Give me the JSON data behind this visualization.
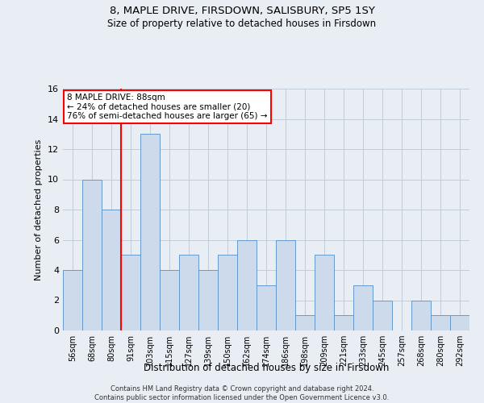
{
  "title1": "8, MAPLE DRIVE, FIRSDOWN, SALISBURY, SP5 1SY",
  "title2": "Size of property relative to detached houses in Firsdown",
  "xlabel": "Distribution of detached houses by size in Firsdown",
  "ylabel": "Number of detached properties",
  "footer1": "Contains HM Land Registry data © Crown copyright and database right 2024.",
  "footer2": "Contains public sector information licensed under the Open Government Licence v3.0.",
  "categories": [
    "56sqm",
    "68sqm",
    "80sqm",
    "91sqm",
    "103sqm",
    "115sqm",
    "127sqm",
    "139sqm",
    "150sqm",
    "162sqm",
    "174sqm",
    "186sqm",
    "198sqm",
    "209sqm",
    "221sqm",
    "233sqm",
    "245sqm",
    "257sqm",
    "268sqm",
    "280sqm",
    "292sqm"
  ],
  "values": [
    4,
    10,
    8,
    5,
    13,
    4,
    5,
    4,
    5,
    6,
    3,
    6,
    1,
    5,
    1,
    3,
    2,
    0,
    2,
    1,
    1
  ],
  "bar_color": "#ccdaeb",
  "bar_edge_color": "#6699cc",
  "annotation_text": "8 MAPLE DRIVE: 88sqm\n← 24% of detached houses are smaller (20)\n76% of semi-detached houses are larger (65) →",
  "annotation_box_color": "white",
  "annotation_box_edge": "red",
  "ylim": [
    0,
    16
  ],
  "yticks": [
    0,
    2,
    4,
    6,
    8,
    10,
    12,
    14,
    16
  ],
  "redline_x": 2.5,
  "background_color": "#e8eef4",
  "plot_bg": "#e8eef4",
  "grid_color": "#c0ccd8"
}
